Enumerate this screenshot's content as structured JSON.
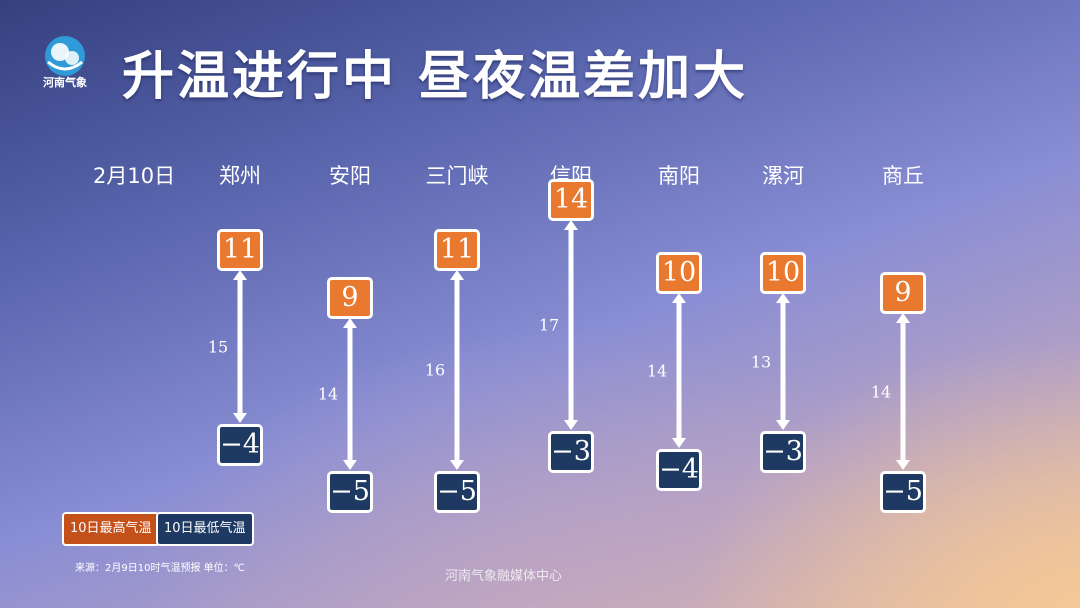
{
  "header": {
    "logo_text": "河南气象",
    "title": "升温进行中  昼夜温差加大"
  },
  "chart_data": {
    "type": "range",
    "date": "2月10日",
    "categories": [
      "郑州",
      "安阳",
      "三门峡",
      "信阳",
      "南阳",
      "漯河",
      "商丘"
    ],
    "series": [
      {
        "name": "10日最高气温",
        "values": [
          11,
          9,
          11,
          14,
          10,
          10,
          9
        ]
      },
      {
        "name": "10日最低气温",
        "values": [
          -4,
          -5,
          -5,
          -3,
          -4,
          -3,
          -5
        ]
      }
    ],
    "diff_labels": [
      "15",
      "14",
      "16",
      "17",
      "14",
      "13",
      "14"
    ],
    "display_values": {
      "high": [
        "11",
        "9",
        "11",
        "14",
        "10",
        "10",
        "9"
      ],
      "low": [
        "−4",
        "−5",
        "−5",
        "−3",
        "−4",
        "−3",
        "−5"
      ]
    },
    "colors": {
      "high": "#e8792e",
      "low": "#1f3a62",
      "legend_high": "#c4501a"
    }
  },
  "legend": {
    "high_label": "10日最高气温",
    "low_label": "10日最低气温"
  },
  "footer": {
    "source": "来源：2月9日10时气温预报   单位：℃",
    "watermark": "河南气象融媒体中心"
  }
}
